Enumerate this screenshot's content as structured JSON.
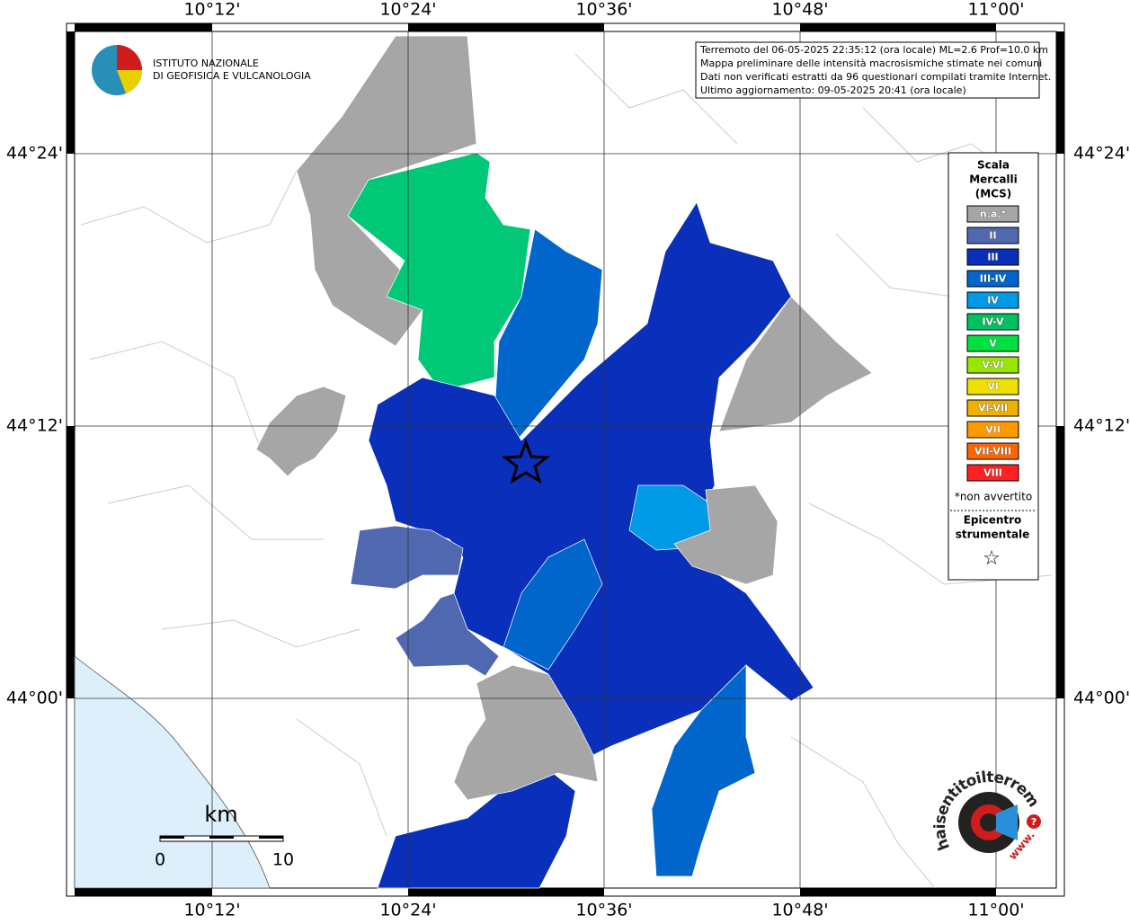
{
  "map": {
    "lon_labels": [
      "10°12'",
      "10°24'",
      "10°36'",
      "10°48'",
      "11°00'"
    ],
    "lat_labels": [
      "44°24'",
      "44°12'",
      "44°00'"
    ],
    "institute": [
      "ISTITUTO NAZIONALE",
      "DI GEOFISICA E VULCANOLOGIA"
    ],
    "info": [
      "Terremoto del 06-05-2025 22:35:12 (ora locale) ML=2.6 Prof=10.0 km",
      "Mappa preliminare delle intensità macrosismiche stimate nei comuni",
      "Dati non verificati estratti da 96 questionari compilati tramite Internet.",
      "Ultimo aggiornamento: 09-05-2025 20:41 (ora locale)"
    ],
    "legend": {
      "title": [
        "Scala",
        "Mercalli",
        "(MCS)"
      ],
      "items": [
        {
          "label": "n.a.*",
          "color": "#a6a6a6"
        },
        {
          "label": "II",
          "color": "#5068b0"
        },
        {
          "label": "III",
          "color": "#0a2fba"
        },
        {
          "label": "III-IV",
          "color": "#0066cc"
        },
        {
          "label": "IV",
          "color": "#0099e6"
        },
        {
          "label": "IV-V",
          "color": "#00c060"
        },
        {
          "label": "V",
          "color": "#00e040"
        },
        {
          "label": "V-VI",
          "color": "#99e600"
        },
        {
          "label": "VI",
          "color": "#f0e000"
        },
        {
          "label": "VI-VII",
          "color": "#f0b000"
        },
        {
          "label": "VII",
          "color": "#ff9900"
        },
        {
          "label": "VII-VIII",
          "color": "#ff6600"
        },
        {
          "label": "VIII",
          "color": "#ff2020"
        }
      ],
      "note": "*non avvertito",
      "epicenter": [
        "Epicentro",
        "strumentale"
      ],
      "star": "☆"
    },
    "scale": {
      "unit": "km",
      "ticks": [
        0,
        10
      ]
    },
    "site_logo": {
      "text": "haisentitoilterremoto.it",
      "prefix": "www.",
      "mark": "?"
    }
  }
}
